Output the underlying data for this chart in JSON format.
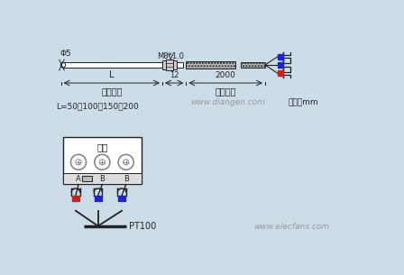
{
  "bg_color": "#ccdde8",
  "phi_label": "Φ5",
  "m8_label": "M8*1.0",
  "L_label": "L",
  "dim_12": "12",
  "dim_2000": "2000",
  "probe_label": "探头长度",
  "wire_label": "引线长度",
  "L_values": "L=50、100、150、200",
  "unit_label": "单位：mm",
  "website1": "www.diangen.com",
  "website2": "www.elecfans.com",
  "meter_label": "仪表",
  "terminal_A": "A",
  "terminal_B": "B",
  "pt100_label": "PT100",
  "blue_color": "#2222cc",
  "red_color": "#cc2222",
  "dark_color": "#222222",
  "gray_light": "#cccccc",
  "gray_med": "#aaaaaa",
  "white": "#ffffff",
  "box_fill": "#ffffff",
  "wire_gray": "#888888",
  "text_gray": "#999999"
}
